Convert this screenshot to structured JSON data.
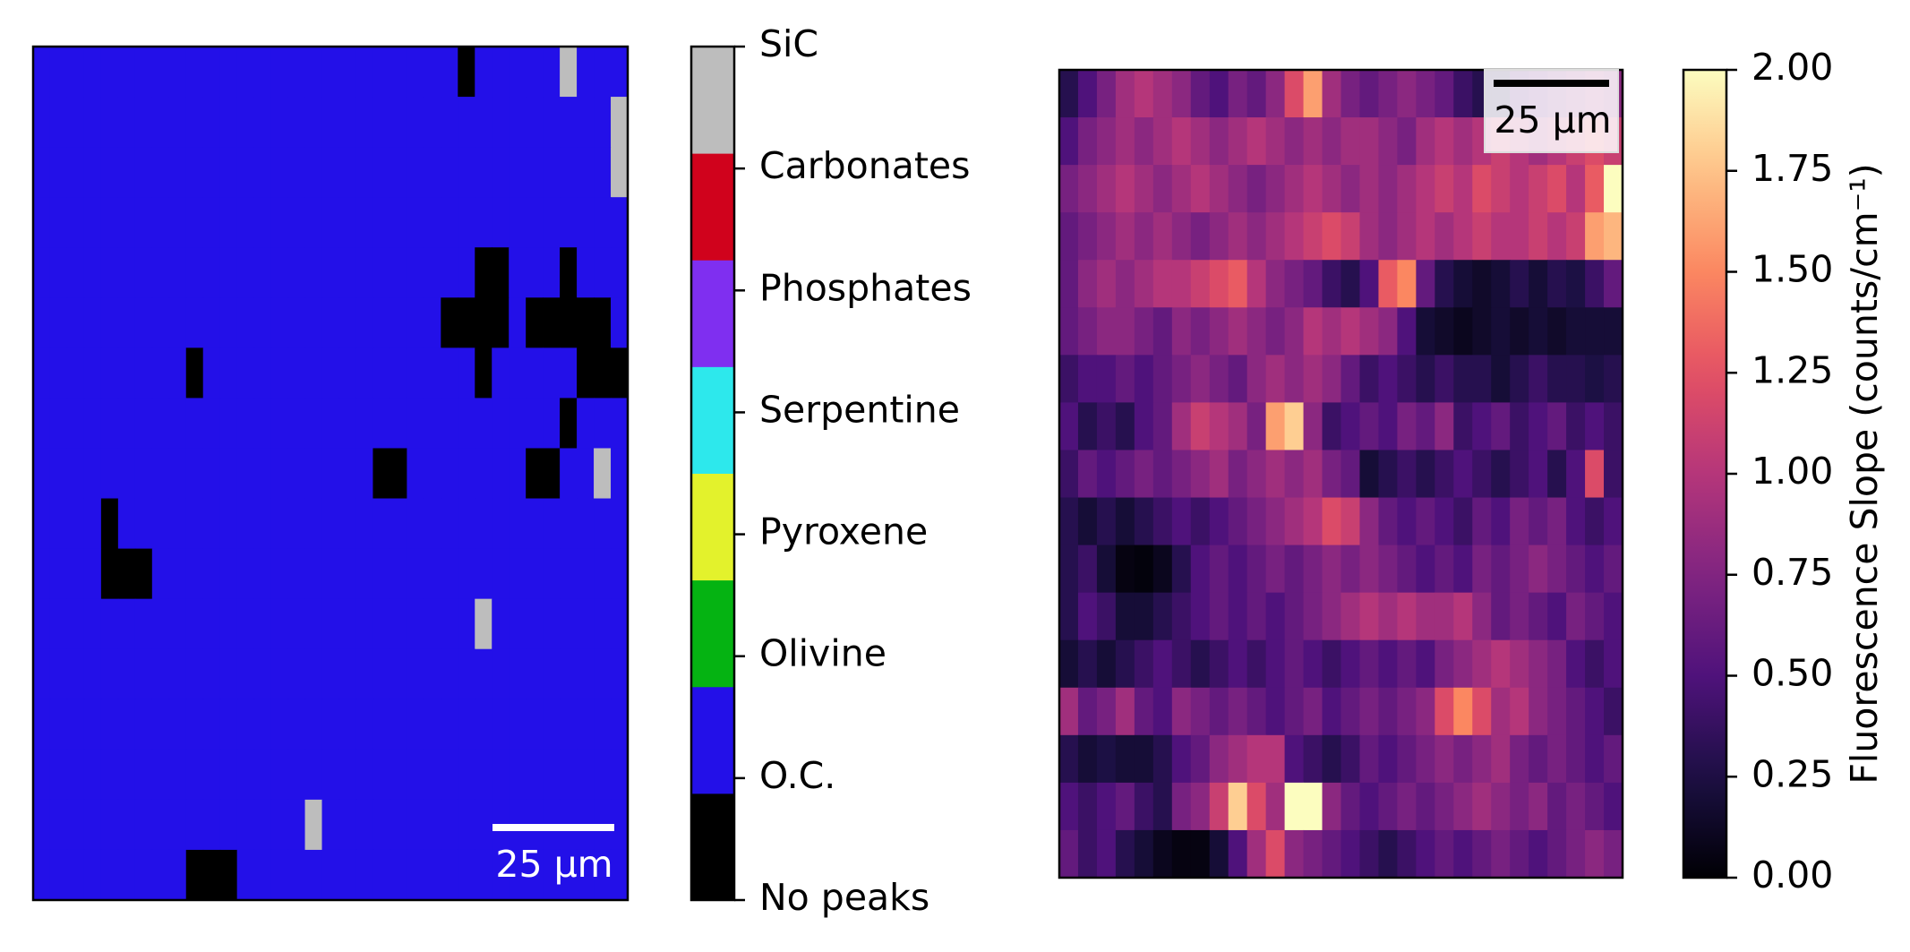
{
  "chart_data": [
    {
      "type": "categorical-heatmap",
      "colors": [
        "#000000",
        "#2310e8",
        "#05b312",
        "#e3f22c",
        "#2de8ec",
        "#7f2ff0",
        "#d0021c",
        "#bdbdbd"
      ],
      "clim": [
        0,
        7
      ],
      "colorbar_ticks": [
        {
          "value": 0,
          "label": "No peaks"
        },
        {
          "value": 1,
          "label": "O.C."
        },
        {
          "value": 2,
          "label": "Olivine"
        },
        {
          "value": 3,
          "label": "Pyroxene"
        },
        {
          "value": 4,
          "label": "Serpentine"
        },
        {
          "value": 5,
          "label": "Phosphates"
        },
        {
          "value": 6,
          "label": "Carbonates"
        },
        {
          "value": 7,
          "label": "SiC"
        }
      ],
      "scale_bar": "25 µm",
      "matrix": [
        [
          1,
          1,
          1,
          1,
          1,
          1,
          1,
          1,
          1,
          1,
          1,
          1,
          1,
          1,
          1,
          1,
          1,
          1,
          1,
          1,
          1,
          1,
          1,
          1,
          1,
          0,
          1,
          1,
          1,
          1,
          1,
          7,
          1,
          1,
          1
        ],
        [
          1,
          1,
          1,
          1,
          1,
          1,
          1,
          1,
          1,
          1,
          1,
          1,
          1,
          1,
          1,
          1,
          1,
          1,
          1,
          1,
          1,
          1,
          1,
          1,
          1,
          1,
          1,
          1,
          1,
          1,
          1,
          1,
          1,
          1,
          7
        ],
        [
          1,
          1,
          1,
          1,
          1,
          1,
          1,
          1,
          1,
          1,
          1,
          1,
          1,
          1,
          1,
          1,
          1,
          1,
          1,
          1,
          1,
          1,
          1,
          1,
          1,
          1,
          1,
          1,
          1,
          1,
          1,
          1,
          1,
          1,
          7
        ],
        [
          1,
          1,
          1,
          1,
          1,
          1,
          1,
          1,
          1,
          1,
          1,
          1,
          1,
          1,
          1,
          1,
          1,
          1,
          1,
          1,
          1,
          1,
          1,
          1,
          1,
          1,
          1,
          1,
          1,
          1,
          1,
          1,
          1,
          1,
          1
        ],
        [
          1,
          1,
          1,
          1,
          1,
          1,
          1,
          1,
          1,
          1,
          1,
          1,
          1,
          1,
          1,
          1,
          1,
          1,
          1,
          1,
          1,
          1,
          1,
          1,
          1,
          1,
          0,
          0,
          1,
          1,
          1,
          0,
          1,
          1,
          1
        ],
        [
          1,
          1,
          1,
          1,
          1,
          1,
          1,
          1,
          1,
          1,
          1,
          1,
          1,
          1,
          1,
          1,
          1,
          1,
          1,
          1,
          1,
          1,
          1,
          1,
          0,
          0,
          0,
          0,
          1,
          0,
          0,
          0,
          0,
          0,
          1
        ],
        [
          1,
          1,
          1,
          1,
          1,
          1,
          1,
          1,
          1,
          0,
          1,
          1,
          1,
          1,
          1,
          1,
          1,
          1,
          1,
          1,
          1,
          1,
          1,
          1,
          1,
          1,
          0,
          1,
          1,
          1,
          1,
          1,
          0,
          0,
          0
        ],
        [
          1,
          1,
          1,
          1,
          1,
          1,
          1,
          1,
          1,
          1,
          1,
          1,
          1,
          1,
          1,
          1,
          1,
          1,
          1,
          1,
          1,
          1,
          1,
          1,
          1,
          1,
          1,
          1,
          1,
          1,
          1,
          0,
          1,
          1,
          1
        ],
        [
          1,
          1,
          1,
          1,
          1,
          1,
          1,
          1,
          1,
          1,
          1,
          1,
          1,
          1,
          1,
          1,
          1,
          1,
          1,
          1,
          0,
          0,
          1,
          1,
          1,
          1,
          1,
          1,
          1,
          0,
          0,
          1,
          1,
          7,
          1
        ],
        [
          1,
          1,
          1,
          1,
          0,
          1,
          1,
          1,
          1,
          1,
          1,
          1,
          1,
          1,
          1,
          1,
          1,
          1,
          1,
          1,
          1,
          1,
          1,
          1,
          1,
          1,
          1,
          1,
          1,
          1,
          1,
          1,
          1,
          1,
          1
        ],
        [
          1,
          1,
          1,
          1,
          0,
          0,
          0,
          1,
          1,
          1,
          1,
          1,
          1,
          1,
          1,
          1,
          1,
          1,
          1,
          1,
          1,
          1,
          1,
          1,
          1,
          1,
          1,
          1,
          1,
          1,
          1,
          1,
          1,
          1,
          1
        ],
        [
          1,
          1,
          1,
          1,
          1,
          1,
          1,
          1,
          1,
          1,
          1,
          1,
          1,
          1,
          1,
          1,
          1,
          1,
          1,
          1,
          1,
          1,
          1,
          1,
          1,
          1,
          7,
          1,
          1,
          1,
          1,
          1,
          1,
          1,
          1
        ],
        [
          1,
          1,
          1,
          1,
          1,
          1,
          1,
          1,
          1,
          1,
          1,
          1,
          1,
          1,
          1,
          1,
          1,
          1,
          1,
          1,
          1,
          1,
          1,
          1,
          1,
          1,
          1,
          1,
          1,
          1,
          1,
          1,
          1,
          1,
          1
        ],
        [
          1,
          1,
          1,
          1,
          1,
          1,
          1,
          1,
          1,
          1,
          1,
          1,
          1,
          1,
          1,
          1,
          1,
          1,
          1,
          1,
          1,
          1,
          1,
          1,
          1,
          1,
          1,
          1,
          1,
          1,
          1,
          1,
          1,
          1,
          1
        ],
        [
          1,
          1,
          1,
          1,
          1,
          1,
          1,
          1,
          1,
          1,
          1,
          1,
          1,
          1,
          1,
          1,
          1,
          1,
          1,
          1,
          1,
          1,
          1,
          1,
          1,
          1,
          1,
          1,
          1,
          1,
          1,
          1,
          1,
          1,
          1
        ],
        [
          1,
          1,
          1,
          1,
          1,
          1,
          1,
          1,
          1,
          1,
          1,
          1,
          1,
          1,
          1,
          1,
          7,
          1,
          1,
          1,
          1,
          1,
          1,
          1,
          1,
          1,
          1,
          1,
          1,
          1,
          1,
          1,
          1,
          1,
          1
        ],
        [
          1,
          1,
          1,
          1,
          1,
          1,
          1,
          1,
          1,
          0,
          0,
          0,
          1,
          1,
          1,
          1,
          1,
          1,
          1,
          1,
          1,
          1,
          1,
          1,
          1,
          1,
          1,
          1,
          1,
          1,
          1,
          1,
          1,
          1,
          1
        ]
      ]
    },
    {
      "type": "heatmap",
      "cmap": "magma",
      "clim": [
        0,
        2
      ],
      "colorbar_ticks": [
        {
          "value": 0,
          "label": "0.00"
        },
        {
          "value": 0.25,
          "label": "0.25"
        },
        {
          "value": 0.5,
          "label": "0.50"
        },
        {
          "value": 0.75,
          "label": "0.75"
        },
        {
          "value": 1,
          "label": "1.00"
        },
        {
          "value": 1.25,
          "label": "1.25"
        },
        {
          "value": 1.5,
          "label": "1.50"
        },
        {
          "value": 1.75,
          "label": "1.75"
        },
        {
          "value": 2,
          "label": "2.00"
        }
      ],
      "colorbar_label": "Fluorescence Slope (counts/cm⁻¹)",
      "scale_bar": "25 µm",
      "matrix": [
        [
          0.3,
          0.5,
          0.7,
          0.9,
          1.0,
          0.9,
          0.8,
          0.6,
          0.5,
          0.7,
          0.6,
          0.8,
          1.2,
          1.6,
          0.9,
          0.7,
          0.6,
          0.7,
          0.8,
          0.7,
          0.6,
          0.4,
          0.3,
          0.3,
          0.5,
          0.6,
          0.7,
          0.8,
          0.9,
          0.8
        ],
        [
          0.5,
          0.7,
          0.8,
          0.9,
          0.8,
          0.9,
          1.0,
          0.9,
          0.8,
          0.9,
          1.0,
          0.9,
          0.8,
          0.9,
          0.8,
          0.9,
          0.9,
          0.8,
          0.7,
          0.9,
          1.0,
          0.9,
          1.0,
          1.1,
          1.0,
          0.9,
          1.0,
          1.1,
          1.2,
          1.1
        ],
        [
          0.7,
          0.8,
          0.9,
          1.0,
          0.9,
          0.8,
          0.9,
          1.0,
          0.9,
          0.8,
          0.7,
          0.8,
          0.9,
          1.0,
          0.9,
          0.8,
          0.9,
          0.8,
          0.9,
          1.0,
          1.1,
          1.0,
          1.2,
          1.1,
          1.0,
          1.1,
          1.2,
          1.0,
          1.3,
          2.0
        ],
        [
          0.6,
          0.7,
          0.8,
          0.9,
          0.8,
          0.9,
          0.8,
          0.7,
          0.8,
          0.9,
          0.8,
          0.9,
          1.0,
          1.1,
          1.2,
          1.1,
          0.9,
          0.8,
          0.9,
          1.0,
          0.9,
          1.0,
          1.1,
          1.0,
          1.0,
          1.1,
          1.0,
          1.1,
          1.6,
          1.7
        ],
        [
          0.6,
          0.8,
          0.9,
          0.8,
          0.9,
          1.0,
          1.0,
          1.1,
          1.2,
          1.3,
          1.0,
          0.8,
          0.7,
          0.6,
          0.4,
          0.3,
          0.5,
          1.3,
          1.5,
          0.6,
          0.3,
          0.2,
          0.15,
          0.2,
          0.3,
          0.2,
          0.3,
          0.25,
          0.4,
          0.6
        ],
        [
          0.6,
          0.7,
          0.8,
          0.8,
          0.7,
          0.6,
          0.8,
          0.7,
          0.8,
          0.9,
          0.8,
          0.7,
          0.8,
          1.0,
          0.9,
          1.0,
          0.9,
          0.8,
          0.5,
          0.2,
          0.15,
          0.1,
          0.15,
          0.2,
          0.15,
          0.2,
          0.15,
          0.2,
          0.2,
          0.2
        ],
        [
          0.4,
          0.5,
          0.5,
          0.6,
          0.5,
          0.6,
          0.7,
          0.8,
          0.7,
          0.6,
          0.8,
          0.9,
          0.8,
          0.9,
          0.8,
          0.6,
          0.4,
          0.5,
          0.4,
          0.3,
          0.4,
          0.3,
          0.3,
          0.2,
          0.3,
          0.4,
          0.3,
          0.3,
          0.25,
          0.3
        ],
        [
          0.5,
          0.3,
          0.4,
          0.3,
          0.5,
          0.6,
          0.9,
          1.1,
          1.0,
          0.9,
          0.7,
          1.6,
          1.8,
          0.8,
          0.4,
          0.5,
          0.6,
          0.5,
          0.7,
          0.6,
          0.8,
          0.4,
          0.5,
          0.6,
          0.4,
          0.5,
          0.6,
          0.4,
          0.5,
          0.4
        ],
        [
          0.4,
          0.6,
          0.5,
          0.6,
          0.7,
          0.6,
          0.7,
          0.8,
          0.9,
          0.7,
          0.8,
          0.9,
          0.8,
          0.9,
          0.7,
          0.6,
          0.2,
          0.3,
          0.4,
          0.3,
          0.4,
          0.5,
          0.4,
          0.3,
          0.4,
          0.5,
          0.3,
          0.5,
          1.2,
          0.4
        ],
        [
          0.3,
          0.2,
          0.3,
          0.2,
          0.3,
          0.4,
          0.5,
          0.4,
          0.5,
          0.6,
          0.7,
          0.8,
          0.9,
          1.0,
          1.2,
          1.1,
          0.8,
          0.6,
          0.5,
          0.6,
          0.5,
          0.4,
          0.6,
          0.5,
          0.7,
          0.6,
          0.7,
          0.5,
          0.4,
          0.5
        ],
        [
          0.3,
          0.4,
          0.2,
          0.05,
          0.03,
          0.1,
          0.3,
          0.5,
          0.6,
          0.5,
          0.6,
          0.7,
          0.6,
          0.7,
          0.8,
          0.7,
          0.8,
          0.7,
          0.6,
          0.5,
          0.6,
          0.5,
          0.7,
          0.6,
          0.7,
          0.8,
          0.7,
          0.6,
          0.5,
          0.6
        ],
        [
          0.3,
          0.5,
          0.4,
          0.2,
          0.2,
          0.3,
          0.4,
          0.5,
          0.6,
          0.5,
          0.6,
          0.5,
          0.6,
          0.7,
          0.8,
          0.9,
          1.0,
          0.9,
          1.0,
          0.9,
          0.9,
          1.0,
          0.8,
          0.6,
          0.7,
          0.6,
          0.5,
          0.7,
          0.6,
          0.5
        ],
        [
          0.2,
          0.3,
          0.2,
          0.3,
          0.4,
          0.5,
          0.4,
          0.3,
          0.4,
          0.5,
          0.4,
          0.5,
          0.6,
          0.5,
          0.4,
          0.5,
          0.6,
          0.5,
          0.6,
          0.5,
          0.7,
          0.8,
          0.9,
          1.0,
          0.9,
          0.8,
          0.7,
          0.5,
          0.4,
          0.5
        ],
        [
          0.9,
          0.6,
          0.7,
          0.9,
          0.6,
          0.5,
          0.8,
          0.7,
          0.6,
          0.7,
          0.6,
          0.5,
          0.6,
          0.7,
          0.5,
          0.6,
          0.7,
          0.6,
          0.7,
          0.8,
          1.2,
          1.5,
          1.2,
          0.9,
          1.0,
          0.8,
          0.7,
          0.6,
          0.5,
          0.4
        ],
        [
          0.3,
          0.2,
          0.25,
          0.2,
          0.2,
          0.3,
          0.5,
          0.6,
          0.8,
          0.9,
          1.0,
          1.0,
          0.5,
          0.4,
          0.3,
          0.4,
          0.6,
          0.5,
          0.6,
          0.7,
          0.8,
          0.7,
          0.8,
          0.9,
          0.7,
          0.6,
          0.7,
          0.6,
          0.5,
          0.6
        ],
        [
          0.5,
          0.4,
          0.5,
          0.6,
          0.4,
          0.3,
          0.7,
          0.8,
          1.1,
          1.8,
          1.2,
          0.9,
          2.0,
          2.0,
          0.8,
          0.6,
          0.5,
          0.6,
          0.7,
          0.6,
          0.7,
          0.8,
          0.9,
          0.8,
          0.7,
          0.8,
          0.6,
          0.7,
          0.6,
          0.5
        ],
        [
          0.6,
          0.4,
          0.5,
          0.3,
          0.2,
          0.1,
          0.05,
          0.05,
          0.2,
          0.5,
          0.9,
          1.2,
          0.8,
          0.7,
          0.6,
          0.5,
          0.4,
          0.3,
          0.4,
          0.5,
          0.6,
          0.5,
          0.6,
          0.7,
          0.6,
          0.5,
          0.6,
          0.7,
          0.8,
          0.7
        ]
      ]
    }
  ]
}
